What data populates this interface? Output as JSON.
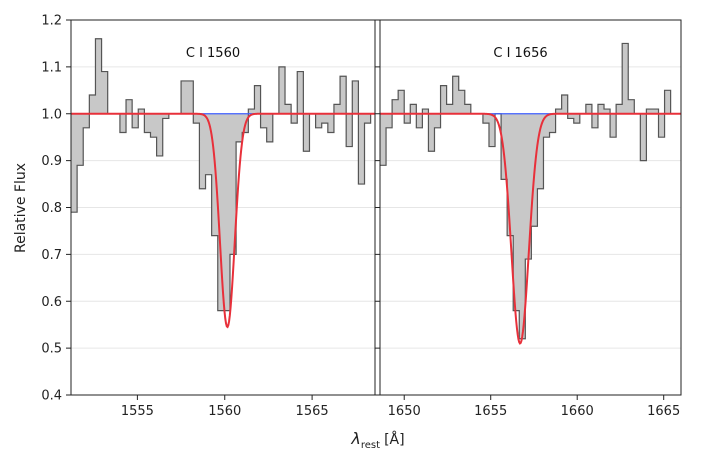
{
  "chart_data": [
    {
      "type": "line",
      "title": "C I 1560",
      "xlim": [
        1551.2,
        1568.6
      ],
      "ylim": [
        0.4,
        1.2
      ],
      "xticks": [
        1555,
        1560,
        1565
      ],
      "grid": "horizontal",
      "continuum": 1.0,
      "x_edges": [
        1551.2,
        1551.55,
        1551.9,
        1552.25,
        1552.6,
        1552.95,
        1553.3,
        1553.65,
        1554.0,
        1554.35,
        1554.7,
        1555.05,
        1555.4,
        1555.75,
        1556.1,
        1556.45,
        1556.8,
        1557.15,
        1557.5,
        1557.85,
        1558.2,
        1558.55,
        1558.9,
        1559.25,
        1559.6,
        1559.95,
        1560.3,
        1560.65,
        1561.0,
        1561.35,
        1561.7,
        1562.05,
        1562.4,
        1562.75,
        1563.1,
        1563.45,
        1563.8,
        1564.15,
        1564.5,
        1564.85,
        1565.2,
        1565.55,
        1565.9,
        1566.25,
        1566.6,
        1566.95,
        1567.3,
        1567.65,
        1568.0,
        1568.35,
        1568.6
      ],
      "flux": [
        0.79,
        0.89,
        0.97,
        1.04,
        1.16,
        1.09,
        1.0,
        1.0,
        0.96,
        1.03,
        0.97,
        1.01,
        0.96,
        0.95,
        0.91,
        0.99,
        1.0,
        1.0,
        1.07,
        1.07,
        0.98,
        0.84,
        0.87,
        0.74,
        0.58,
        0.58,
        0.7,
        0.94,
        0.96,
        1.01,
        1.06,
        0.97,
        0.94,
        1.0,
        1.1,
        1.02,
        0.98,
        1.09,
        0.92,
        1.0,
        0.97,
        0.98,
        0.96,
        1.02,
        1.08,
        0.93,
        1.07,
        0.85,
        0.98,
        1.0
      ],
      "model": {
        "center": 1560.15,
        "depth": 0.455,
        "sigma": 0.42
      },
      "series": [
        {
          "name": "",
          "color": "#555555",
          "kind": "data-histogram"
        },
        {
          "name": "",
          "color": "#e8303a",
          "kind": "model"
        },
        {
          "name": "",
          "color": "#4060ff",
          "kind": "continuum"
        }
      ]
    },
    {
      "type": "line",
      "title": "C I 1656",
      "xlim": [
        1648.6,
        1666.0
      ],
      "ylim": [
        0.4,
        1.2
      ],
      "xticks": [
        1650,
        1655,
        1660,
        1665
      ],
      "grid": "horizontal",
      "continuum": 1.0,
      "x_edges": [
        1648.6,
        1648.95,
        1649.3,
        1649.65,
        1650.0,
        1650.35,
        1650.7,
        1651.05,
        1651.4,
        1651.75,
        1652.1,
        1652.45,
        1652.8,
        1653.15,
        1653.5,
        1653.85,
        1654.2,
        1654.55,
        1654.9,
        1655.25,
        1655.6,
        1655.95,
        1656.3,
        1656.65,
        1657.0,
        1657.35,
        1657.7,
        1658.05,
        1658.4,
        1658.75,
        1659.1,
        1659.45,
        1659.8,
        1660.15,
        1660.5,
        1660.85,
        1661.2,
        1661.55,
        1661.9,
        1662.25,
        1662.6,
        1662.95,
        1663.3,
        1663.65,
        1664.0,
        1664.35,
        1664.7,
        1665.05,
        1665.4,
        1665.75,
        1666.0
      ],
      "flux": [
        0.89,
        0.97,
        1.03,
        1.05,
        0.98,
        1.02,
        0.97,
        1.01,
        0.92,
        0.97,
        1.06,
        1.02,
        1.08,
        1.05,
        1.02,
        1.0,
        1.0,
        0.98,
        0.93,
        1.0,
        0.86,
        0.74,
        0.58,
        0.52,
        0.69,
        0.76,
        0.84,
        0.95,
        0.96,
        1.01,
        1.04,
        0.99,
        0.98,
        1.0,
        1.02,
        0.97,
        1.02,
        1.01,
        0.95,
        1.02,
        1.15,
        1.03,
        1.0,
        0.9,
        1.01,
        1.01,
        0.95,
        1.05,
        1.0,
        1.0
      ],
      "model": {
        "center": 1656.7,
        "depth": 0.49,
        "sigma": 0.5
      },
      "series": [
        {
          "name": "",
          "color": "#555555",
          "kind": "data-histogram"
        },
        {
          "name": "",
          "color": "#e8303a",
          "kind": "model"
        },
        {
          "name": "",
          "color": "#4060ff",
          "kind": "continuum"
        }
      ]
    }
  ],
  "axes": {
    "ylabel": "Relative Flux",
    "xlabel_symbol": "λ",
    "xlabel_sub": "rest",
    "xlabel_unit": "[Å]",
    "yticks": [
      "0.4",
      "0.5",
      "0.6",
      "0.7",
      "0.8",
      "0.9",
      "1.0",
      "1.1",
      "1.2"
    ]
  }
}
